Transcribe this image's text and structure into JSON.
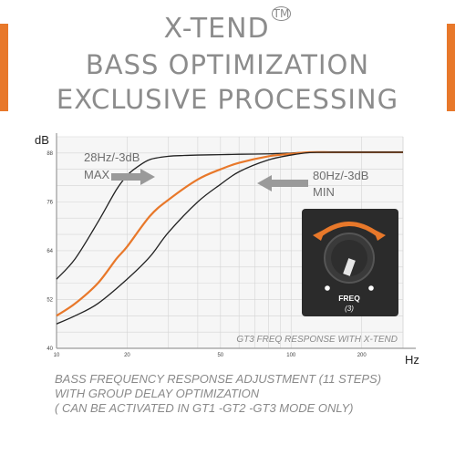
{
  "header": {
    "brand": "X-TEND",
    "trademark": "TM",
    "line2": "BASS OPTIMIZATION",
    "line3": "EXCLUSIVE PROCESSING"
  },
  "colors": {
    "accent": "#e8782a",
    "text_gray": "#8c8c8c",
    "knob_panel": "#2b2b2b"
  },
  "chart_data": {
    "type": "line",
    "xlabel": "Hz",
    "ylabel": "dB",
    "x_scale": "log",
    "xlim": [
      10,
      300
    ],
    "ylim": [
      40,
      92
    ],
    "x_ticks": [
      10,
      20,
      50,
      100,
      200
    ],
    "y_ticks": [
      40,
      52,
      64,
      76,
      88
    ],
    "grid": true,
    "caption": "GT3  FREQ RESPONSE WITH X-TEND",
    "series": [
      {
        "color": "#222222",
        "x": [
          10,
          12,
          15,
          18,
          20,
          22,
          25,
          30,
          35,
          40,
          50,
          60,
          80,
          100,
          120,
          150,
          200,
          300
        ],
        "values": [
          57,
          62,
          71,
          79,
          82.5,
          84.5,
          86.4,
          87.2,
          87.4,
          87.5,
          87.6,
          87.7,
          87.8,
          88,
          88.2,
          88.2,
          88.2,
          88.2
        ]
      },
      {
        "color": "#e8782a",
        "x": [
          10,
          12,
          15,
          18,
          20,
          25,
          30,
          40,
          50,
          60,
          80,
          100,
          120,
          150,
          200,
          300
        ],
        "values": [
          48,
          51,
          56,
          62,
          65,
          72.5,
          76.5,
          81.5,
          84,
          85.6,
          87.2,
          87.8,
          88.2,
          88.2,
          88.2,
          88.2
        ]
      },
      {
        "color": "#222222",
        "x": [
          10,
          12,
          15,
          20,
          25,
          30,
          40,
          50,
          60,
          80,
          100,
          120,
          150,
          200,
          300
        ],
        "values": [
          46,
          48,
          51,
          57,
          62.5,
          68.5,
          76,
          80.3,
          83.4,
          86.3,
          87.5,
          88.1,
          88.2,
          88.2,
          88.2
        ]
      }
    ],
    "annotations": [
      {
        "line1": "28Hz/-3dB",
        "line2": "MAX"
      },
      {
        "line1": "80Hz/-3dB",
        "line2": "MIN"
      }
    ],
    "knob_label": "FREQ",
    "knob_sublabel": "(3)"
  },
  "footer": {
    "line1": "BASS FREQUENCY RESPONSE ADJUSTMENT (11 STEPS)",
    "line2": "WITH GROUP DELAY OPTIMIZATION",
    "line3": "( CAN BE ACTIVATED IN GT1 -GT2 -GT3 MODE ONLY)"
  }
}
